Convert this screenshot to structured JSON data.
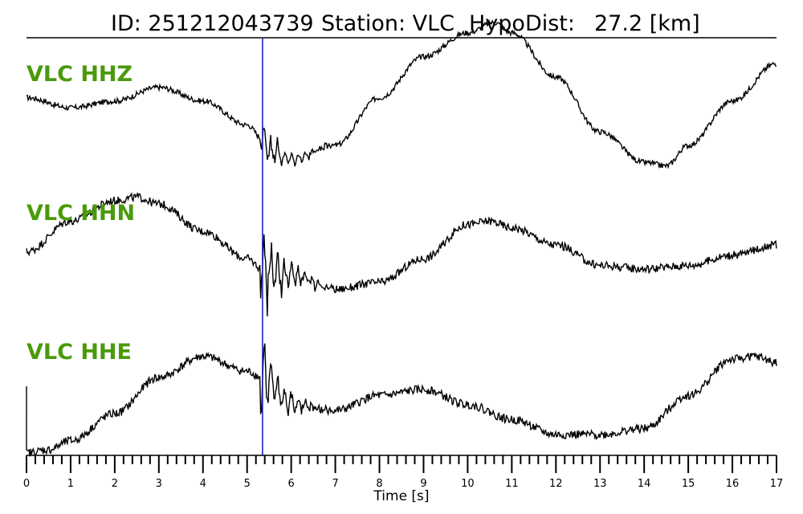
{
  "header": {
    "id_text": "ID: 251212043739",
    "station_text": "Station: VLC",
    "dist_label": "HypoDist:",
    "dist_value": "27.2 [km]"
  },
  "chart_data": {
    "type": "line",
    "xlabel": "Time [s]",
    "xlim": [
      0,
      17
    ],
    "x_ticks": [
      "0",
      "1",
      "2",
      "3",
      "4",
      "5",
      "6",
      "7",
      "8",
      "9",
      "10",
      "11",
      "12",
      "13",
      "14",
      "15",
      "16",
      "17"
    ],
    "minor_tick_step": 0.2,
    "pick_time": 5.35,
    "pick_color": "#1f1fd0",
    "trace_color": "#000000",
    "label_color": "#4a9a0c",
    "series": [
      {
        "name": "VLC HHZ",
        "x": [
          0,
          1,
          2,
          3,
          4,
          5,
          5.35,
          5.6,
          6,
          7,
          8,
          9,
          10,
          10.6,
          11,
          12,
          13,
          14,
          14.5,
          15,
          16,
          17
        ],
        "y": [
          0.1,
          -0.05,
          0.05,
          0.25,
          0.05,
          -0.3,
          -0.5,
          -0.7,
          -0.8,
          -0.6,
          0.1,
          0.7,
          1.05,
          1.2,
          1.05,
          0.4,
          -0.4,
          -0.85,
          -0.9,
          -0.6,
          0.05,
          0.6
        ],
        "noise": 0.04,
        "burst": 0.35
      },
      {
        "name": "VLC HHN",
        "x": [
          0,
          1,
          2,
          2.5,
          3,
          4,
          5,
          5.35,
          6,
          7,
          8,
          9,
          10,
          10.5,
          11,
          12,
          13,
          14,
          15,
          16,
          17
        ],
        "y": [
          -0.1,
          0.35,
          0.65,
          0.7,
          0.6,
          0.2,
          -0.2,
          -0.35,
          -0.45,
          -0.65,
          -0.55,
          -0.2,
          0.3,
          0.35,
          0.25,
          0.0,
          -0.3,
          -0.35,
          -0.3,
          -0.15,
          0.0
        ],
        "noise": 0.06,
        "burst": 0.7
      },
      {
        "name": "VLC HHE",
        "x": [
          0,
          0.5,
          1,
          2,
          3,
          4,
          5,
          5.35,
          6,
          7,
          8,
          9,
          10,
          11,
          12,
          13,
          14,
          15,
          16,
          16.5,
          17
        ],
        "y": [
          -1.25,
          -1.2,
          -1.05,
          -0.6,
          0.0,
          0.35,
          0.1,
          0.0,
          -0.45,
          -0.55,
          -0.3,
          -0.2,
          -0.45,
          -0.7,
          -0.95,
          -0.95,
          -0.85,
          -0.3,
          0.3,
          0.35,
          0.25
        ],
        "noise": 0.07,
        "burst": 0.6
      }
    ]
  }
}
